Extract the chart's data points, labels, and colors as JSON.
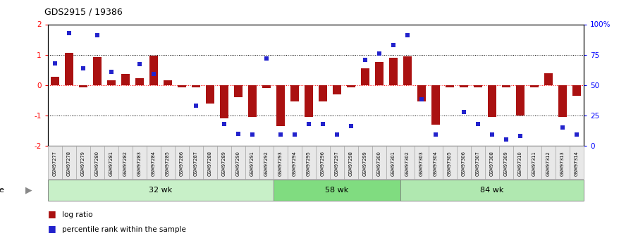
{
  "title": "GDS2915 / 19386",
  "samples": [
    "GSM97277",
    "GSM97278",
    "GSM97279",
    "GSM97280",
    "GSM97281",
    "GSM97282",
    "GSM97283",
    "GSM97284",
    "GSM97285",
    "GSM97286",
    "GSM97287",
    "GSM97288",
    "GSM97289",
    "GSM97290",
    "GSM97291",
    "GSM97292",
    "GSM97293",
    "GSM97294",
    "GSM97295",
    "GSM97296",
    "GSM97297",
    "GSM97298",
    "GSM97299",
    "GSM97300",
    "GSM97301",
    "GSM97302",
    "GSM97303",
    "GSM97304",
    "GSM97305",
    "GSM97306",
    "GSM97307",
    "GSM97308",
    "GSM97309",
    "GSM97310",
    "GSM97311",
    "GSM97312",
    "GSM97313",
    "GSM97314"
  ],
  "log_ratio": [
    0.28,
    1.05,
    -0.08,
    0.93,
    0.15,
    0.36,
    0.22,
    0.97,
    0.15,
    -0.08,
    -0.08,
    -0.6,
    -1.1,
    -0.4,
    -1.05,
    -0.1,
    -1.35,
    -0.55,
    -1.05,
    -0.55,
    -0.3,
    -0.08,
    0.55,
    0.75,
    0.9,
    0.95,
    -0.55,
    -1.3,
    -0.08,
    -0.08,
    -0.08,
    -1.05,
    -0.08,
    -1.0,
    -0.08,
    0.4,
    -1.05,
    -0.35
  ],
  "percentile_rank_pct": [
    68,
    93,
    64,
    91,
    61,
    null,
    67,
    59,
    null,
    null,
    33,
    null,
    18,
    10,
    9,
    72,
    9,
    9,
    18,
    18,
    9,
    16,
    71,
    76,
    83,
    91,
    38,
    9,
    null,
    28,
    18,
    9,
    5,
    8,
    null,
    null,
    15,
    9
  ],
  "groups": [
    {
      "label": "32 wk",
      "start": 0,
      "end": 16,
      "color": "#c8f0c8"
    },
    {
      "label": "58 wk",
      "start": 16,
      "end": 25,
      "color": "#80dc80"
    },
    {
      "label": "84 wk",
      "start": 25,
      "end": 38,
      "color": "#b0e8b0"
    }
  ],
  "bar_color": "#aa1111",
  "dot_color": "#2222cc",
  "ylim": [
    -2,
    2
  ],
  "hlines_dotted": [
    -1,
    1
  ],
  "hline_red": 0,
  "bg_color": "#ffffff"
}
